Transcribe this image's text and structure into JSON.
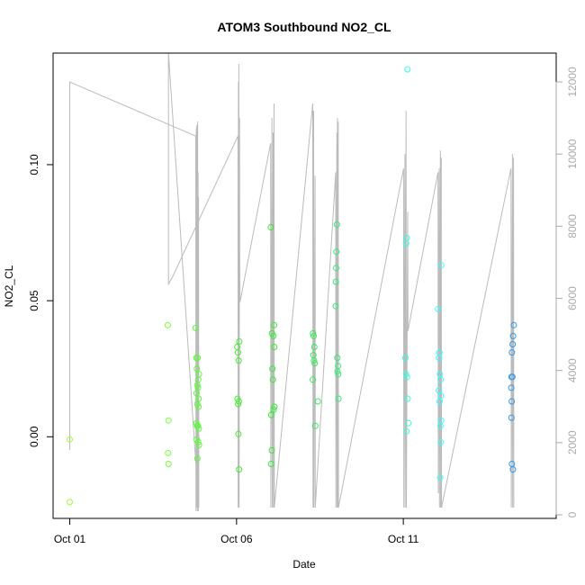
{
  "chart_data": {
    "type": "scatter",
    "title": "ATOM3 Southbound NO2_CL",
    "xlabel": "Date",
    "ylabel": "NO2_CL",
    "x_ticks": [
      {
        "date": "2023-10-01",
        "label": "Oct 01"
      },
      {
        "date": "2023-10-06",
        "label": "Oct 06"
      },
      {
        "date": "2023-10-11",
        "label": "Oct 11"
      }
    ],
    "xlim": [
      "2023-09-30T12:00",
      "2023-10-15T14:00"
    ],
    "ylim": [
      -0.03,
      0.141
    ],
    "y_ticks": [
      0.0,
      0.05,
      0.1
    ],
    "y_tick_labels": [
      "0.00",
      "0.05",
      "0.10"
    ],
    "y2lim": [
      -100,
      12800
    ],
    "y2_ticks": [
      0,
      2000,
      4000,
      6000,
      8000,
      10000,
      12000
    ],
    "y2_tick_labels": [
      "0",
      "2000",
      "4000",
      "6000",
      "8000",
      "10000",
      "12000"
    ],
    "grid": false,
    "points": [
      {
        "t": "2023-10-01T00:00",
        "y": -0.001,
        "color": "#99ff33"
      },
      {
        "t": "2023-10-01T00:00",
        "y": -0.024,
        "color": "#99ff33"
      },
      {
        "t": "2023-10-03T22:30",
        "y": 0.041,
        "color": "#77ff33"
      },
      {
        "t": "2023-10-03T23:00",
        "y": 0.006,
        "color": "#77ff33"
      },
      {
        "t": "2023-10-03T22:45",
        "y": -0.006,
        "color": "#77ff33"
      },
      {
        "t": "2023-10-03T23:00",
        "y": -0.01,
        "color": "#77ff33"
      },
      {
        "t": "2023-10-04T18:30",
        "y": 0.04,
        "color": "#55ff33"
      },
      {
        "t": "2023-10-04T19:00",
        "y": 0.029,
        "color": "#55ff33"
      },
      {
        "t": "2023-10-04T20:00",
        "y": 0.029,
        "color": "#55ff33"
      },
      {
        "t": "2023-10-04T19:30",
        "y": 0.025,
        "color": "#55ff33"
      },
      {
        "t": "2023-10-04T21:00",
        "y": 0.023,
        "color": "#55ff33"
      },
      {
        "t": "2023-10-04T20:30",
        "y": 0.021,
        "color": "#55ff33"
      },
      {
        "t": "2023-10-04T19:45",
        "y": 0.019,
        "color": "#55ff33"
      },
      {
        "t": "2023-10-04T20:15",
        "y": 0.018,
        "color": "#55ff33"
      },
      {
        "t": "2023-10-04T19:15",
        "y": 0.016,
        "color": "#55ff33"
      },
      {
        "t": "2023-10-04T20:45",
        "y": 0.014,
        "color": "#55ff33"
      },
      {
        "t": "2023-10-04T19:50",
        "y": 0.012,
        "color": "#55ff33"
      },
      {
        "t": "2023-10-04T20:40",
        "y": 0.011,
        "color": "#55ff33"
      },
      {
        "t": "2023-10-04T19:05",
        "y": 0.005,
        "color": "#55ff33"
      },
      {
        "t": "2023-10-04T19:40",
        "y": 0.004,
        "color": "#55ff33"
      },
      {
        "t": "2023-10-04T20:10",
        "y": 0.004,
        "color": "#55ff33"
      },
      {
        "t": "2023-10-04T20:50",
        "y": 0.003,
        "color": "#55ff33"
      },
      {
        "t": "2023-10-04T19:20",
        "y": -0.001,
        "color": "#55ff33"
      },
      {
        "t": "2023-10-04T20:25",
        "y": -0.002,
        "color": "#55ff33"
      },
      {
        "t": "2023-10-04T21:00",
        "y": -0.003,
        "color": "#55ff33"
      },
      {
        "t": "2023-10-04T19:50",
        "y": -0.008,
        "color": "#55ff33"
      },
      {
        "t": "2023-10-06T02:00",
        "y": 0.035,
        "color": "#44ee33"
      },
      {
        "t": "2023-10-06T00:30",
        "y": 0.033,
        "color": "#44ee33"
      },
      {
        "t": "2023-10-06T01:00",
        "y": 0.031,
        "color": "#44ee33"
      },
      {
        "t": "2023-10-06T01:30",
        "y": 0.028,
        "color": "#44ee33"
      },
      {
        "t": "2023-10-06T00:40",
        "y": 0.014,
        "color": "#44ee33"
      },
      {
        "t": "2023-10-06T01:40",
        "y": 0.013,
        "color": "#44ee33"
      },
      {
        "t": "2023-10-06T01:10",
        "y": 0.012,
        "color": "#44ee33"
      },
      {
        "t": "2023-10-06T01:20",
        "y": 0.001,
        "color": "#44ee33"
      },
      {
        "t": "2023-10-06T01:50",
        "y": -0.012,
        "color": "#44ee33"
      },
      {
        "t": "2023-10-07T00:40",
        "y": 0.077,
        "color": "#33ee33"
      },
      {
        "t": "2023-10-07T03:00",
        "y": 0.041,
        "color": "#33ee33"
      },
      {
        "t": "2023-10-07T01:30",
        "y": 0.038,
        "color": "#33ee33"
      },
      {
        "t": "2023-10-07T02:30",
        "y": 0.037,
        "color": "#33ee33"
      },
      {
        "t": "2023-10-07T03:10",
        "y": 0.033,
        "color": "#33ee33"
      },
      {
        "t": "2023-10-07T01:50",
        "y": 0.025,
        "color": "#33ee33"
      },
      {
        "t": "2023-10-07T02:10",
        "y": 0.021,
        "color": "#33ee33"
      },
      {
        "t": "2023-10-07T03:15",
        "y": 0.011,
        "color": "#33ee33"
      },
      {
        "t": "2023-10-07T02:40",
        "y": 0.01,
        "color": "#33ee33"
      },
      {
        "t": "2023-10-07T01:00",
        "y": 0.008,
        "color": "#33ee33"
      },
      {
        "t": "2023-10-07T01:20",
        "y": -0.005,
        "color": "#33ee33"
      },
      {
        "t": "2023-10-07T00:50",
        "y": -0.01,
        "color": "#33ee33"
      },
      {
        "t": "2023-10-08T07:00",
        "y": 0.038,
        "color": "#33ee55"
      },
      {
        "t": "2023-10-08T07:30",
        "y": 0.037,
        "color": "#33ee55"
      },
      {
        "t": "2023-10-08T08:00",
        "y": 0.033,
        "color": "#33ee55"
      },
      {
        "t": "2023-10-08T07:15",
        "y": 0.03,
        "color": "#33ee55"
      },
      {
        "t": "2023-10-08T07:45",
        "y": 0.028,
        "color": "#33ee55"
      },
      {
        "t": "2023-10-08T08:15",
        "y": 0.027,
        "color": "#33ee55"
      },
      {
        "t": "2023-10-08T06:50",
        "y": 0.021,
        "color": "#33ee55"
      },
      {
        "t": "2023-10-08T10:30",
        "y": 0.013,
        "color": "#33ee55"
      },
      {
        "t": "2023-10-08T08:40",
        "y": 0.004,
        "color": "#33ee55"
      },
      {
        "t": "2023-10-09T00:10",
        "y": 0.078,
        "color": "#33ee77"
      },
      {
        "t": "2023-10-08T23:50",
        "y": 0.068,
        "color": "#33ee77"
      },
      {
        "t": "2023-10-08T23:40",
        "y": 0.062,
        "color": "#33ee77"
      },
      {
        "t": "2023-10-08T23:30",
        "y": 0.057,
        "color": "#33ee77"
      },
      {
        "t": "2023-10-08T23:20",
        "y": 0.048,
        "color": "#33ee77"
      },
      {
        "t": "2023-10-09T00:30",
        "y": 0.029,
        "color": "#33ee77"
      },
      {
        "t": "2023-10-09T01:00",
        "y": 0.026,
        "color": "#33ee77"
      },
      {
        "t": "2023-10-09T00:40",
        "y": 0.024,
        "color": "#33ee77"
      },
      {
        "t": "2023-10-09T01:10",
        "y": 0.023,
        "color": "#33ee77"
      },
      {
        "t": "2023-10-09T01:20",
        "y": 0.014,
        "color": "#33ee77"
      },
      {
        "t": "2023-10-11T03:00",
        "y": 0.135,
        "color": "#33ffee"
      },
      {
        "t": "2023-10-11T02:30",
        "y": 0.073,
        "color": "#33ffdd"
      },
      {
        "t": "2023-10-11T02:00",
        "y": 0.071,
        "color": "#33ffdd"
      },
      {
        "t": "2023-10-11T01:30",
        "y": 0.029,
        "color": "#33ffdd"
      },
      {
        "t": "2023-10-11T02:00",
        "y": 0.023,
        "color": "#33ffdd"
      },
      {
        "t": "2023-10-11T02:40",
        "y": 0.022,
        "color": "#33ffdd"
      },
      {
        "t": "2023-10-11T03:10",
        "y": 0.014,
        "color": "#33ffdd"
      },
      {
        "t": "2023-10-11T03:40",
        "y": 0.005,
        "color": "#33ffdd"
      },
      {
        "t": "2023-10-11T02:20",
        "y": 0.002,
        "color": "#33ffdd"
      },
      {
        "t": "2023-10-12T03:20",
        "y": 0.063,
        "color": "#33ffff"
      },
      {
        "t": "2023-10-12T01:00",
        "y": 0.047,
        "color": "#33ffff"
      },
      {
        "t": "2023-10-12T02:00",
        "y": 0.031,
        "color": "#33ffff"
      },
      {
        "t": "2023-10-12T01:40",
        "y": 0.029,
        "color": "#33ffff"
      },
      {
        "t": "2023-10-12T02:20",
        "y": 0.023,
        "color": "#33ffff"
      },
      {
        "t": "2023-10-12T02:50",
        "y": 0.021,
        "color": "#33ffff"
      },
      {
        "t": "2023-10-12T01:30",
        "y": 0.017,
        "color": "#33ffff"
      },
      {
        "t": "2023-10-12T03:00",
        "y": 0.015,
        "color": "#33ffff"
      },
      {
        "t": "2023-10-12T02:10",
        "y": 0.013,
        "color": "#33ffff"
      },
      {
        "t": "2023-10-12T03:10",
        "y": 0.006,
        "color": "#33ffff"
      },
      {
        "t": "2023-10-12T02:40",
        "y": 0.004,
        "color": "#33ffff"
      },
      {
        "t": "2023-10-12T03:00",
        "y": -0.002,
        "color": "#33ffff"
      },
      {
        "t": "2023-10-12T02:30",
        "y": -0.015,
        "color": "#33ffff"
      },
      {
        "t": "2023-10-14T07:30",
        "y": 0.041,
        "color": "#3399ee"
      },
      {
        "t": "2023-10-14T07:00",
        "y": 0.037,
        "color": "#3399ee"
      },
      {
        "t": "2023-10-14T06:40",
        "y": 0.034,
        "color": "#3399ee"
      },
      {
        "t": "2023-10-14T06:10",
        "y": 0.031,
        "color": "#3399ee"
      },
      {
        "t": "2023-10-14T05:50",
        "y": 0.022,
        "color": "#3399ee"
      },
      {
        "t": "2023-10-14T06:30",
        "y": 0.022,
        "color": "#3399ee"
      },
      {
        "t": "2023-10-14T05:40",
        "y": 0.018,
        "color": "#3399ee"
      },
      {
        "t": "2023-10-14T06:00",
        "y": 0.013,
        "color": "#3399ee"
      },
      {
        "t": "2023-10-14T05:50",
        "y": 0.007,
        "color": "#3399ee"
      },
      {
        "t": "2023-10-14T06:10",
        "y": -0.01,
        "color": "#3399ee"
      },
      {
        "t": "2023-10-14T06:50",
        "y": -0.012,
        "color": "#3399ee"
      }
    ],
    "line_series": {
      "color": "#bbbbbb",
      "axis": "right",
      "points": [
        [
          "2023-10-01T00:00",
          1800
        ],
        [
          "2023-10-01T00:00",
          12000
        ],
        [
          "2023-10-04T18:40",
          10500
        ],
        [
          "2023-10-04T18:50",
          100
        ],
        [
          "2023-10-04T19:00",
          10700
        ],
        [
          "2023-10-04T19:10",
          200
        ],
        [
          "2023-10-04T19:20",
          10800
        ],
        [
          "2023-10-04T19:30",
          300
        ],
        [
          "2023-10-04T19:40",
          10600
        ],
        [
          "2023-10-04T19:50",
          100
        ],
        [
          "2023-10-04T20:00",
          10900
        ],
        [
          "2023-10-04T20:10",
          200
        ],
        [
          "2023-10-04T20:20",
          9500
        ],
        [
          "2023-10-04T20:30",
          100
        ],
        [
          "2023-10-04T20:40",
          8800
        ],
        [
          "2023-10-04T20:50",
          200
        ],
        [
          "2023-10-03T23:00",
          12800
        ],
        [
          "2023-10-03T23:00",
          6400
        ],
        [
          "2023-10-04T02:00",
          6600
        ],
        [
          "2023-10-06T01:00",
          10500
        ],
        [
          "2023-10-06T01:10",
          200
        ],
        [
          "2023-10-06T01:20",
          12000
        ],
        [
          "2023-10-06T01:30",
          300
        ],
        [
          "2023-10-06T01:40",
          12500
        ],
        [
          "2023-10-06T01:50",
          200
        ],
        [
          "2023-10-06T02:10",
          11000
        ],
        [
          "2023-10-06T02:20",
          7000
        ],
        [
          "2023-10-06T02:30",
          5900
        ],
        [
          "2023-10-07T00:30",
          10300
        ],
        [
          "2023-10-07T00:40",
          200
        ],
        [
          "2023-10-07T01:30",
          11000
        ],
        [
          "2023-10-07T01:40",
          200
        ],
        [
          "2023-10-07T02:20",
          10600
        ],
        [
          "2023-10-07T02:30",
          200
        ],
        [
          "2023-10-07T03:00",
          11400
        ],
        [
          "2023-10-07T03:10",
          200
        ],
        [
          "2023-10-08T06:50",
          11400
        ],
        [
          "2023-10-08T07:00",
          200
        ],
        [
          "2023-10-08T07:30",
          11200
        ],
        [
          "2023-10-08T07:40",
          200
        ],
        [
          "2023-10-08T08:30",
          9400
        ],
        [
          "2023-10-08T08:40",
          200
        ],
        [
          "2023-10-08T23:20",
          9500
        ],
        [
          "2023-10-08T23:30",
          200
        ],
        [
          "2023-10-09T00:10",
          10600
        ],
        [
          "2023-10-09T00:20",
          200
        ],
        [
          "2023-10-09T00:40",
          11000
        ],
        [
          "2023-10-09T00:50",
          200
        ],
        [
          "2023-10-09T01:10",
          10900
        ],
        [
          "2023-10-09T01:20",
          200
        ],
        [
          "2023-10-11T00:10",
          9600
        ],
        [
          "2023-10-11T00:20",
          200
        ],
        [
          "2023-10-11T01:10",
          10000
        ],
        [
          "2023-10-11T01:20",
          200
        ],
        [
          "2023-10-11T02:00",
          11200
        ],
        [
          "2023-10-11T02:10",
          200
        ],
        [
          "2023-10-11T03:10",
          8400
        ],
        [
          "2023-10-11T03:20",
          5100
        ],
        [
          "2023-10-12T01:00",
          9500
        ],
        [
          "2023-10-12T01:10",
          600
        ],
        [
          "2023-10-12T01:50",
          9600
        ],
        [
          "2023-10-12T02:00",
          200
        ],
        [
          "2023-10-12T02:40",
          10100
        ],
        [
          "2023-10-12T02:50",
          200
        ],
        [
          "2023-10-12T03:20",
          9900
        ],
        [
          "2023-10-12T03:30",
          200
        ],
        [
          "2023-10-14T05:30",
          9600
        ],
        [
          "2023-10-14T05:40",
          200
        ],
        [
          "2023-10-14T06:30",
          10000
        ],
        [
          "2023-10-14T06:40",
          200
        ],
        [
          "2023-10-14T07:20",
          9900
        ],
        [
          "2023-10-14T07:30",
          200
        ]
      ]
    }
  }
}
